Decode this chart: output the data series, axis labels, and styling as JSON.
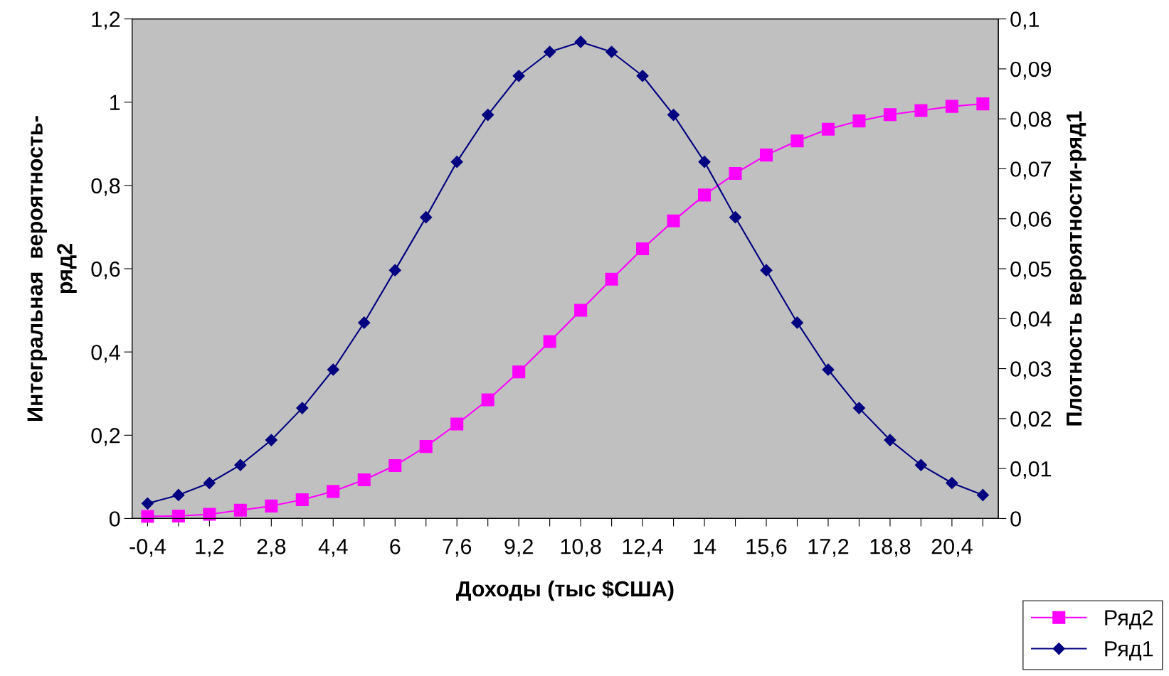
{
  "chart_data": {
    "type": "line",
    "xlabel": "Доходы (тыс $США)",
    "ylabel": "Интегральная  вероятность-\nряд2",
    "y2label": "Плотность вероятности-ряд1",
    "categories": [
      "-0,4",
      null,
      "1,2",
      null,
      "2,8",
      null,
      "4,4",
      null,
      "6",
      null,
      "7,6",
      null,
      "9,2",
      null,
      "10,8",
      null,
      "12,4",
      null,
      "14",
      null,
      "15,6",
      null,
      "17,2",
      null,
      "18,8",
      null,
      "20,4",
      null
    ],
    "series": [
      {
        "name": "Ряд2",
        "color": "#ff00ff",
        "marker": "square",
        "values": [
          0.005,
          0.006,
          0.01,
          0.02,
          0.03,
          0.045,
          0.065,
          0.093,
          0.127,
          0.173,
          0.227,
          0.285,
          0.352,
          0.425,
          0.5,
          0.575,
          0.648,
          0.715,
          0.777,
          0.829,
          0.873,
          0.907,
          0.935,
          0.955,
          0.97,
          0.98,
          0.99,
          0.996
        ]
      },
      {
        "name": "Ряд1",
        "color": "#000080",
        "marker": "diamond",
        "axis": "y2",
        "values": [
          0.003,
          0.0047,
          0.0071,
          0.0107,
          0.0157,
          0.0221,
          0.0298,
          0.0392,
          0.0497,
          0.0603,
          0.0714,
          0.0808,
          0.0886,
          0.0934,
          0.0954,
          0.0934,
          0.0886,
          0.0808,
          0.0714,
          0.0603,
          0.0497,
          0.0392,
          0.0298,
          0.0221,
          0.0157,
          0.0107,
          0.0071,
          0.0047
        ]
      }
    ],
    "ylim": [
      0,
      1.2
    ],
    "yticks": [
      {
        "value": 0,
        "label": "0"
      },
      {
        "value": 0.2,
        "label": "0,2"
      },
      {
        "value": 0.4,
        "label": "0,4"
      },
      {
        "value": 0.6,
        "label": "0,6"
      },
      {
        "value": 0.8,
        "label": "0,8"
      },
      {
        "value": 1,
        "label": "1"
      },
      {
        "value": 1.2,
        "label": "1,2"
      }
    ],
    "y2lim": [
      0,
      0.1
    ],
    "y2ticks": [
      {
        "value": 0,
        "label": "0"
      },
      {
        "value": 0.01,
        "label": "0,01"
      },
      {
        "value": 0.02,
        "label": "0,02"
      },
      {
        "value": 0.03,
        "label": "0,03"
      },
      {
        "value": 0.04,
        "label": "0,04"
      },
      {
        "value": 0.05,
        "label": "0,05"
      },
      {
        "value": 0.06,
        "label": "0,06"
      },
      {
        "value": 0.07,
        "label": "0,07"
      },
      {
        "value": 0.08,
        "label": "0,08"
      },
      {
        "value": 0.09,
        "label": "0,09"
      },
      {
        "value": 0.1,
        "label": "0,1"
      }
    ],
    "grid": false,
    "legend": "bottom right",
    "line_style": "solid"
  }
}
